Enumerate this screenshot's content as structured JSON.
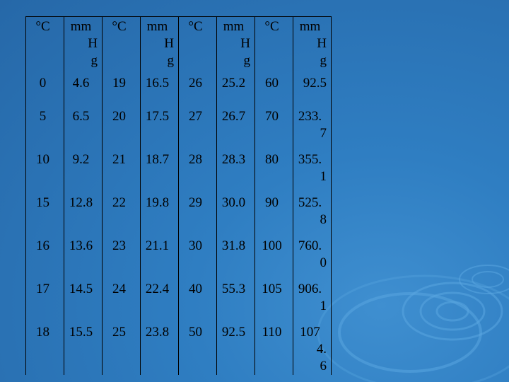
{
  "table": {
    "header": [
      {
        "kind": "temp",
        "label": "°C"
      },
      {
        "kind": "press",
        "label": "mm Hg",
        "lines": [
          "mm",
          "H",
          "g"
        ]
      },
      {
        "kind": "temp",
        "label": "°C"
      },
      {
        "kind": "press",
        "label": "mm Hg",
        "lines": [
          "mm",
          "H",
          "g"
        ]
      },
      {
        "kind": "temp",
        "label": "°C"
      },
      {
        "kind": "press",
        "label": "mm Hg",
        "lines": [
          "mm",
          "H",
          "g"
        ]
      },
      {
        "kind": "temp",
        "label": "°C"
      },
      {
        "kind": "press",
        "label": "mm Hg",
        "lines": [
          "mm",
          "H",
          "g"
        ]
      }
    ],
    "rows": [
      [
        "0",
        "4.6",
        "19",
        "16.5",
        "26",
        "25.2",
        "60",
        "92.5"
      ],
      [
        "5",
        "6.5",
        "20",
        "17.5",
        "27",
        "26.7",
        "70",
        "233.7"
      ],
      [
        "10",
        "9.2",
        "21",
        "18.7",
        "28",
        "28.3",
        "80",
        "355.1"
      ],
      [
        "15",
        "12.8",
        "22",
        "19.8",
        "29",
        "30.0",
        "90",
        "525.8"
      ],
      [
        "16",
        "13.6",
        "23",
        "21.1",
        "30",
        "31.8",
        "100",
        "760.0"
      ],
      [
        "17",
        "14.5",
        "24",
        "22.4",
        "40",
        "55.3",
        "105",
        "906.1"
      ],
      [
        "18",
        "15.5",
        "25",
        "23.8",
        "50",
        "92.5",
        "110",
        "1074.6"
      ]
    ],
    "last_col_display": [
      [
        "92.5"
      ],
      [
        "233.",
        "7"
      ],
      [
        "355.",
        "1"
      ],
      [
        "525.",
        "8"
      ],
      [
        "760.",
        "0"
      ],
      [
        "906.",
        "1"
      ],
      [
        "107",
        "4.",
        "6"
      ]
    ]
  },
  "colors": {
    "background": "#2f7ec2",
    "ripple": "#5aa6e0",
    "grid_lines": "#000000",
    "text": "#000000"
  }
}
